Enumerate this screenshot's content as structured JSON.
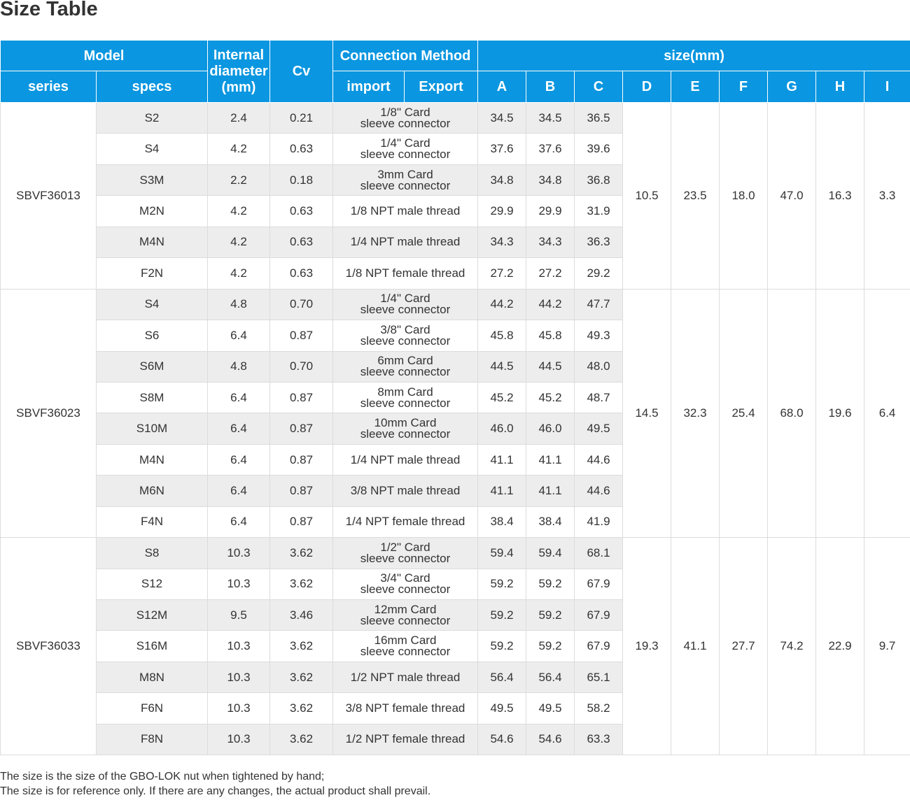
{
  "title": "Size Table",
  "headers": {
    "model": "Model",
    "internal_diameter": "Internal diameter (mm)",
    "cv": "Cv",
    "connection_method": "Connection Method",
    "size_mm": "size(mm)",
    "series": "series",
    "specs": "specs",
    "import": "import",
    "export": "Export",
    "dims": [
      "A",
      "B",
      "C",
      "D",
      "E",
      "F",
      "G",
      "H",
      "I"
    ]
  },
  "groups": [
    {
      "series": "SBVF36013",
      "D": "10.5",
      "E": "23.5",
      "F": "18.0",
      "G": "47.0",
      "H": "16.3",
      "I": "3.3",
      "rows": [
        {
          "spec": "S2",
          "id": "2.4",
          "cv": "0.21",
          "conn1": "1/8\" Card",
          "conn2": "sleeve connector",
          "A": "34.5",
          "B": "34.5",
          "C": "36.5"
        },
        {
          "spec": "S4",
          "id": "4.2",
          "cv": "0.63",
          "conn1": "1/4\" Card",
          "conn2": "sleeve connector",
          "A": "37.6",
          "B": "37.6",
          "C": "39.6"
        },
        {
          "spec": "S3M",
          "id": "2.2",
          "cv": "0.18",
          "conn1": "3mm Card",
          "conn2": "sleeve connector",
          "A": "34.8",
          "B": "34.8",
          "C": "36.8"
        },
        {
          "spec": "M2N",
          "id": "4.2",
          "cv": "0.63",
          "conn1": "1/8 NPT male thread",
          "conn2": "",
          "A": "29.9",
          "B": "29.9",
          "C": "31.9"
        },
        {
          "spec": "M4N",
          "id": "4.2",
          "cv": "0.63",
          "conn1": "1/4 NPT male thread",
          "conn2": "",
          "A": "34.3",
          "B": "34.3",
          "C": "36.3"
        },
        {
          "spec": "F2N",
          "id": "4.2",
          "cv": "0.63",
          "conn1": "1/8 NPT female thread",
          "conn2": "",
          "A": "27.2",
          "B": "27.2",
          "C": "29.2"
        }
      ]
    },
    {
      "series": "SBVF36023",
      "D": "14.5",
      "E": "32.3",
      "F": "25.4",
      "G": "68.0",
      "H": "19.6",
      "I": "6.4",
      "rows": [
        {
          "spec": "S4",
          "id": "4.8",
          "cv": "0.70",
          "conn1": "1/4\" Card",
          "conn2": "sleeve connector",
          "A": "44.2",
          "B": "44.2",
          "C": "47.7"
        },
        {
          "spec": "S6",
          "id": "6.4",
          "cv": "0.87",
          "conn1": "3/8\" Card",
          "conn2": "sleeve connector",
          "A": "45.8",
          "B": "45.8",
          "C": "49.3"
        },
        {
          "spec": "S6M",
          "id": "4.8",
          "cv": "0.70",
          "conn1": "6mm Card",
          "conn2": "sleeve connector",
          "A": "44.5",
          "B": "44.5",
          "C": "48.0"
        },
        {
          "spec": "S8M",
          "id": "6.4",
          "cv": "0.87",
          "conn1": "8mm Card",
          "conn2": "sleeve connector",
          "A": "45.2",
          "B": "45.2",
          "C": "48.7"
        },
        {
          "spec": "S10M",
          "id": "6.4",
          "cv": "0.87",
          "conn1": "10mm Card",
          "conn2": "sleeve connector",
          "A": "46.0",
          "B": "46.0",
          "C": "49.5"
        },
        {
          "spec": "M4N",
          "id": "6.4",
          "cv": "0.87",
          "conn1": "1/4 NPT male thread",
          "conn2": "",
          "A": "41.1",
          "B": "41.1",
          "C": "44.6"
        },
        {
          "spec": "M6N",
          "id": "6.4",
          "cv": "0.87",
          "conn1": "3/8 NPT male thread",
          "conn2": "",
          "A": "41.1",
          "B": "41.1",
          "C": "44.6"
        },
        {
          "spec": "F4N",
          "id": "6.4",
          "cv": "0.87",
          "conn1": "1/4 NPT female thread",
          "conn2": "",
          "A": "38.4",
          "B": "38.4",
          "C": "41.9"
        }
      ]
    },
    {
      "series": "SBVF36033",
      "D": "19.3",
      "E": "41.1",
      "F": "27.7",
      "G": "74.2",
      "H": "22.9",
      "I": "9.7",
      "rows": [
        {
          "spec": "S8",
          "id": "10.3",
          "cv": "3.62",
          "conn1": "1/2\" Card",
          "conn2": "sleeve connector",
          "A": "59.4",
          "B": "59.4",
          "C": "68.1"
        },
        {
          "spec": "S12",
          "id": "10.3",
          "cv": "3.62",
          "conn1": "3/4\" Card",
          "conn2": "sleeve connector",
          "A": "59.2",
          "B": "59.2",
          "C": "67.9"
        },
        {
          "spec": "S12M",
          "id": "9.5",
          "cv": "3.46",
          "conn1": "12mm Card",
          "conn2": "sleeve connector",
          "A": "59.2",
          "B": "59.2",
          "C": "67.9"
        },
        {
          "spec": "S16M",
          "id": "10.3",
          "cv": "3.62",
          "conn1": "16mm Card",
          "conn2": "sleeve connector",
          "A": "59.2",
          "B": "59.2",
          "C": "67.9"
        },
        {
          "spec": "M8N",
          "id": "10.3",
          "cv": "3.62",
          "conn1": "1/2 NPT male thread",
          "conn2": "",
          "A": "56.4",
          "B": "56.4",
          "C": "65.1"
        },
        {
          "spec": "F6N",
          "id": "10.3",
          "cv": "3.62",
          "conn1": "3/8 NPT female thread",
          "conn2": "",
          "A": "49.5",
          "B": "49.5",
          "C": "58.2"
        },
        {
          "spec": "F8N",
          "id": "10.3",
          "cv": "3.62",
          "conn1": "1/2 NPT female thread",
          "conn2": "",
          "A": "54.6",
          "B": "54.6",
          "C": "63.3"
        }
      ]
    }
  ],
  "notes": [
    "The size is the size of the GBO-LOK nut when tightened by hand;",
    "The size is for reference only. If there are any changes, the actual product shall prevail."
  ],
  "colors": {
    "header_bg": "#0a96e0",
    "header_text": "#ffffff",
    "shaded_row": "#ededed",
    "text": "#333333"
  }
}
